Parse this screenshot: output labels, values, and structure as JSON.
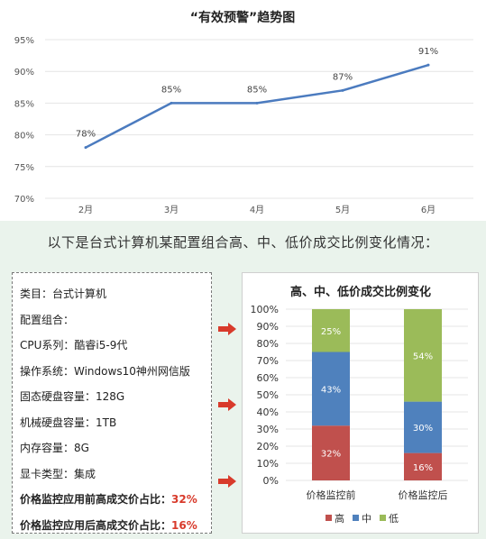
{
  "chart_data": [
    {
      "type": "line",
      "title": "“有效预警”趋势图",
      "categories": [
        "2月",
        "3月",
        "4月",
        "5月",
        "6月"
      ],
      "values": [
        78,
        85,
        85,
        87,
        91
      ],
      "data_labels": [
        "78%",
        "85%",
        "85%",
        "87%",
        "91%"
      ],
      "y_ticks": [
        "70%",
        "75%",
        "80%",
        "85%",
        "90%",
        "95%"
      ],
      "ylim": [
        70,
        95
      ],
      "grid": true,
      "line_color": "#4b7bbf"
    },
    {
      "type": "bar",
      "stacked": true,
      "title": "高、中、低价成交比例变化",
      "categories": [
        "价格监控前",
        "价格监控后"
      ],
      "series": [
        {
          "name": "高",
          "values": [
            32,
            16
          ],
          "labels": [
            "32%",
            "16%"
          ],
          "color": "#c0504d"
        },
        {
          "name": "中",
          "values": [
            43,
            30
          ],
          "labels": [
            "43%",
            "30%"
          ],
          "color": "#4f81bd"
        },
        {
          "name": "低",
          "values": [
            25,
            54
          ],
          "labels": [
            "25%",
            "54%"
          ],
          "color": "#9bbb59"
        }
      ],
      "y_ticks": [
        "0%",
        "10%",
        "20%",
        "30%",
        "40%",
        "50%",
        "60%",
        "70%",
        "80%",
        "90%",
        "100%"
      ],
      "ylim": [
        0,
        100
      ],
      "legend_position": "bottom",
      "grid": true
    }
  ],
  "caption": "以下是台式计算机某配置组合高、中、低价成交比例变化情况：",
  "spec": {
    "lines": [
      {
        "text": "类目：台式计算机"
      },
      {
        "text": "配置组合："
      },
      {
        "text": "CPU系列：酷睿i5-9代"
      },
      {
        "text": "操作系统：Windows10神州网信版"
      },
      {
        "text": "固态硬盘容量：128G"
      },
      {
        "text": "机械硬盘容量：1TB"
      },
      {
        "text": "内存容量：8G"
      },
      {
        "text": "显卡类型：集成"
      }
    ],
    "summary_before_label": "价格监控应用前高成交价占比：",
    "summary_before_value": "32%",
    "summary_after_label": "价格监控应用后高成交价占比：",
    "summary_after_value": "16%"
  },
  "colors": {
    "arrow": "#d83a2b",
    "highlight": "#d83a2b"
  }
}
